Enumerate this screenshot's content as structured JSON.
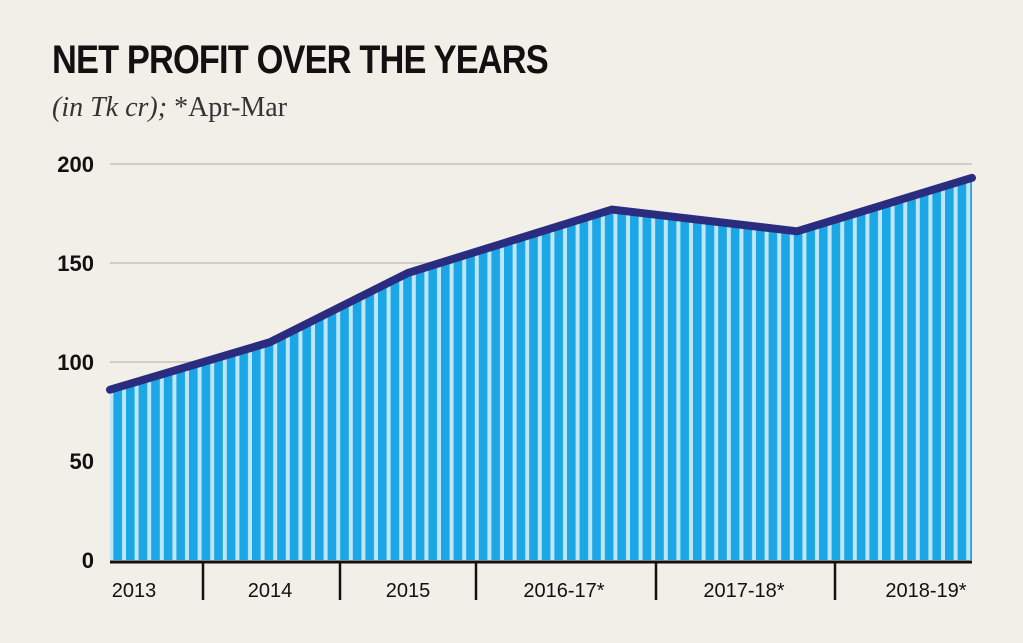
{
  "chart_data": {
    "type": "area",
    "title": "NET PROFIT OVER THE YEARS",
    "subtitle_unit": "(in Tk cr);",
    "subtitle_note": " *Apr-Mar",
    "categories": [
      "2013",
      "2014",
      "2015",
      "2016-17*",
      "2017-18*",
      "2018-19*"
    ],
    "x": [
      "2013",
      "2014",
      "2015",
      "2016-17*",
      "2017-18*",
      "2018-19*"
    ],
    "values": [
      86,
      110,
      145,
      177,
      166,
      193
    ],
    "ylim": [
      0,
      200
    ],
    "yticks": [
      "0",
      "50",
      "100",
      "150",
      "200"
    ],
    "grid": true,
    "colors": {
      "background": "#f2efe9",
      "fill": "#1ba6e6",
      "stripe": "#bfe6f6",
      "line": "#2a2d7f",
      "grid": "#cfcbc6",
      "axis": "#111111"
    }
  }
}
